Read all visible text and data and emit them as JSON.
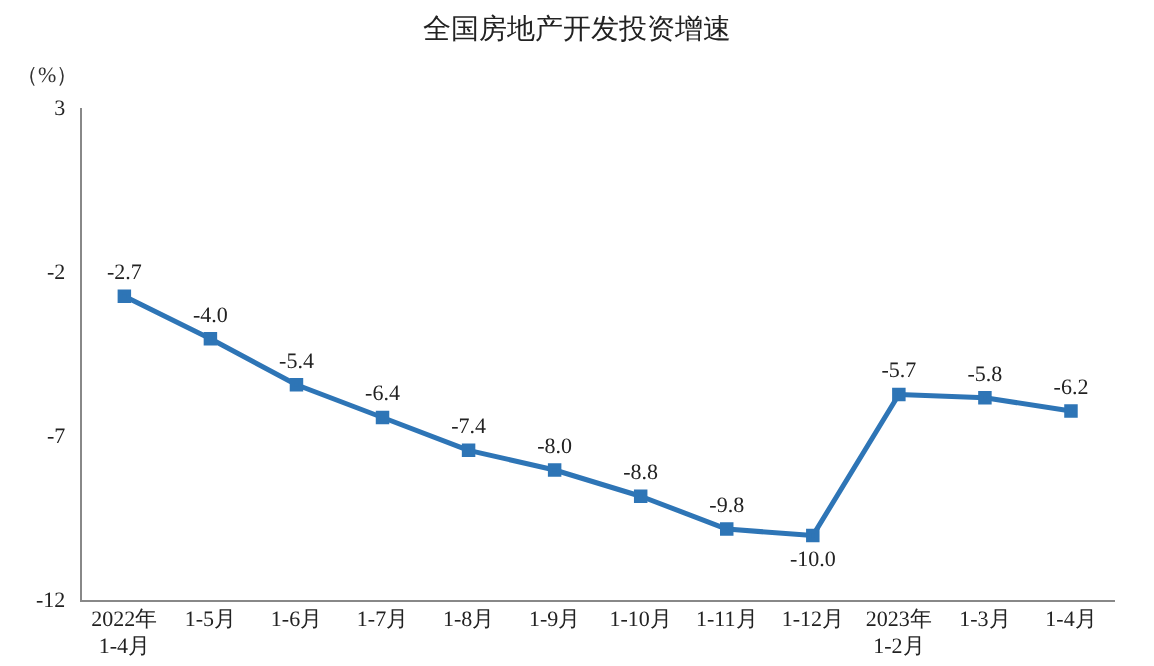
{
  "chart_data": {
    "type": "line",
    "title": "全国房地产开发投资增速",
    "ylabel": "（%）",
    "categories": [
      "2022年\n1-4月",
      "1-5月",
      "1-6月",
      "1-7月",
      "1-8月",
      "1-9月",
      "1-10月",
      "1-11月",
      "1-12月",
      "2023年\n1-2月",
      "1-3月",
      "1-4月"
    ],
    "series": [
      {
        "color": "#2e75b6",
        "values": [
          -2.7,
          -4.0,
          -5.4,
          -6.4,
          -7.4,
          -8.0,
          -8.8,
          -9.8,
          -10.0,
          -5.7,
          -5.8,
          -6.2
        ],
        "value_labels": [
          "-2.7",
          "-4.0",
          "-5.4",
          "-6.4",
          "-7.4",
          "-8.0",
          "-8.8",
          "-9.8",
          "-10.0",
          "-5.7",
          "-5.8",
          "-6.2"
        ]
      }
    ],
    "ylim": [
      -12,
      3
    ],
    "yticks": [
      3,
      -2,
      -7,
      -12
    ],
    "grid": false,
    "legend": false,
    "marker": "square",
    "line_style": "solid"
  }
}
